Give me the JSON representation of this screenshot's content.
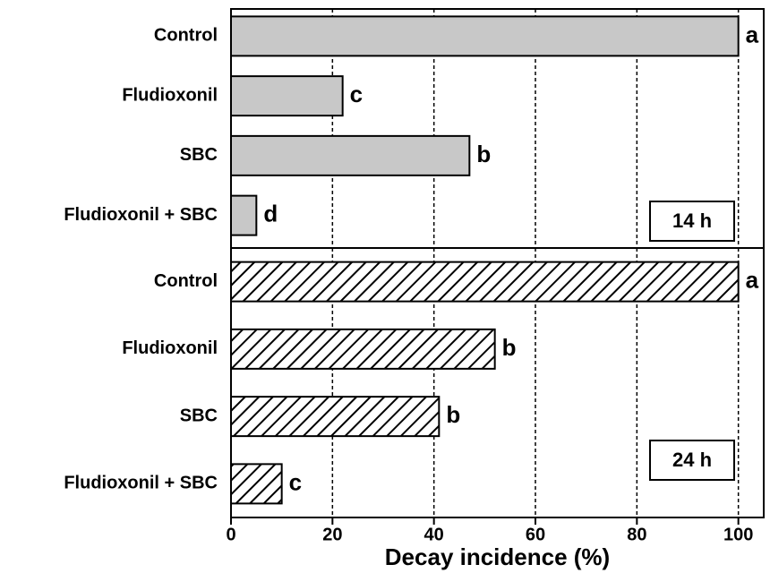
{
  "chart_data": [
    {
      "type": "bar",
      "orientation": "horizontal",
      "categories": [
        "Control",
        "Fludioxonil",
        "SBC",
        "Fludioxonil + SBC"
      ],
      "values": [
        100,
        22,
        47,
        5
      ],
      "annotations": [
        "a",
        "c",
        "b",
        "d"
      ],
      "panel_label": "14 h",
      "color": "#c8c8c8",
      "pattern": "solid",
      "xlim": [
        0,
        105
      ],
      "xticks": [
        0,
        20,
        40,
        60,
        80,
        100
      ],
      "grid": true
    },
    {
      "type": "bar",
      "orientation": "horizontal",
      "categories": [
        "Control",
        "Fludioxonil",
        "SBC",
        "Fludioxonil + SBC"
      ],
      "values": [
        100,
        52,
        41,
        10
      ],
      "annotations": [
        "a",
        "b",
        "b",
        "c"
      ],
      "panel_label": "24 h",
      "color": "#000000",
      "pattern": "hatch",
      "xlim": [
        0,
        105
      ],
      "xticks": [
        0,
        20,
        40,
        60,
        80,
        100
      ],
      "grid": true,
      "xlabel": "Decay incidence (%)"
    }
  ]
}
